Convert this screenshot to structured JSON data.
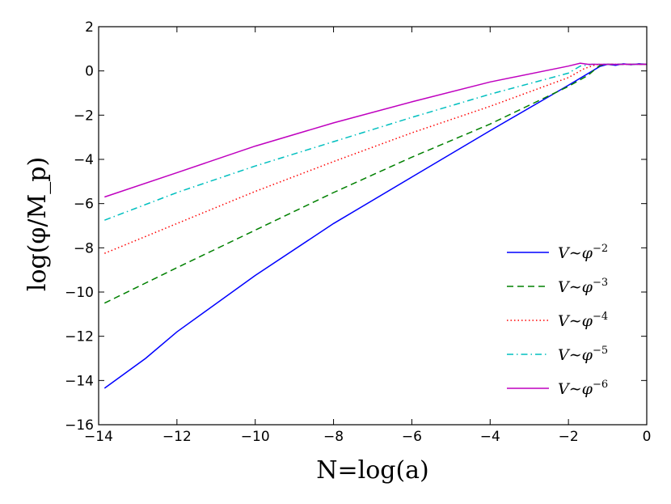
{
  "chart_data": {
    "type": "line",
    "xlabel": "N=log(a)",
    "ylabel": "log(φ/M_p)",
    "xlim": [
      -14,
      0
    ],
    "ylim": [
      -16,
      2
    ],
    "xticks": [
      -14,
      -12,
      -10,
      -8,
      -6,
      -4,
      -2,
      0
    ],
    "yticks": [
      -16,
      -14,
      -12,
      -10,
      -8,
      -6,
      -4,
      -2,
      0,
      2
    ],
    "xtick_labels": [
      "−14",
      "−12",
      "−10",
      "−8",
      "−6",
      "−4",
      "−2",
      "0"
    ],
    "ytick_labels": [
      "−16",
      "−14",
      "−12",
      "−10",
      "−8",
      "−6",
      "−4",
      "−2",
      "0",
      "2"
    ],
    "grid": false,
    "legend_position": "lower-right",
    "series": [
      {
        "name": "V∼φ^−2",
        "legend_base": "V∼φ",
        "legend_exp": "−2",
        "color": "#0000ff",
        "dash": "solid",
        "x": [
          -13.85,
          -12.8,
          -12,
          -10,
          -8,
          -6,
          -4,
          -2,
          -1.2,
          -1.0,
          -0.8,
          -0.6,
          -0.4,
          -0.2,
          0
        ],
        "y": [
          -14.35,
          -13.0,
          -11.8,
          -9.25,
          -6.9,
          -4.8,
          -2.7,
          -0.65,
          0.2,
          0.3,
          0.25,
          0.32,
          0.28,
          0.32,
          0.3
        ]
      },
      {
        "name": "V∼φ^−3",
        "legend_base": "V∼φ",
        "legend_exp": "−3",
        "color": "#008000",
        "dash": "dashed",
        "x": [
          -13.85,
          -12,
          -10,
          -8,
          -6,
          -4,
          -2,
          -1.5,
          -1.2,
          -1.0,
          -0.6,
          -0.2,
          0
        ],
        "y": [
          -10.5,
          -8.9,
          -7.2,
          -5.5,
          -3.9,
          -2.4,
          -0.7,
          -0.2,
          0.25,
          0.3,
          0.3,
          0.3,
          0.3
        ]
      },
      {
        "name": "V∼φ^−4",
        "legend_base": "V∼φ",
        "legend_exp": "−4",
        "color": "#ff0000",
        "dash": "dotted",
        "x": [
          -13.85,
          -12,
          -10,
          -8,
          -6,
          -4,
          -2,
          -1.6,
          -1.3,
          -1.0,
          -0.6,
          -0.2,
          0
        ],
        "y": [
          -8.25,
          -6.9,
          -5.45,
          -4.1,
          -2.8,
          -1.6,
          -0.3,
          0.1,
          0.28,
          0.3,
          0.3,
          0.3,
          0.3
        ]
      },
      {
        "name": "V∼φ^−5",
        "legend_base": "V∼φ",
        "legend_exp": "−5",
        "color": "#00bfbf",
        "dash": "dashdot",
        "x": [
          -13.85,
          -12,
          -10,
          -8,
          -6,
          -4,
          -2,
          -1.7,
          -1.4,
          -1.0,
          -0.6,
          -0.2,
          0
        ],
        "y": [
          -6.75,
          -5.5,
          -4.3,
          -3.2,
          -2.1,
          -1.05,
          -0.1,
          0.22,
          0.3,
          0.3,
          0.3,
          0.3,
          0.3
        ]
      },
      {
        "name": "V∼φ^−6",
        "legend_base": "V∼φ",
        "legend_exp": "−6",
        "color": "#bf00bf",
        "dash": "solid",
        "x": [
          -13.85,
          -12,
          -10,
          -8,
          -6,
          -4,
          -2,
          -1.7,
          -1.5,
          -1.0,
          -0.6,
          -0.2,
          0
        ],
        "y": [
          -5.7,
          -4.6,
          -3.4,
          -2.35,
          -1.4,
          -0.5,
          0.22,
          0.35,
          0.3,
          0.3,
          0.3,
          0.3,
          0.3
        ]
      }
    ]
  }
}
